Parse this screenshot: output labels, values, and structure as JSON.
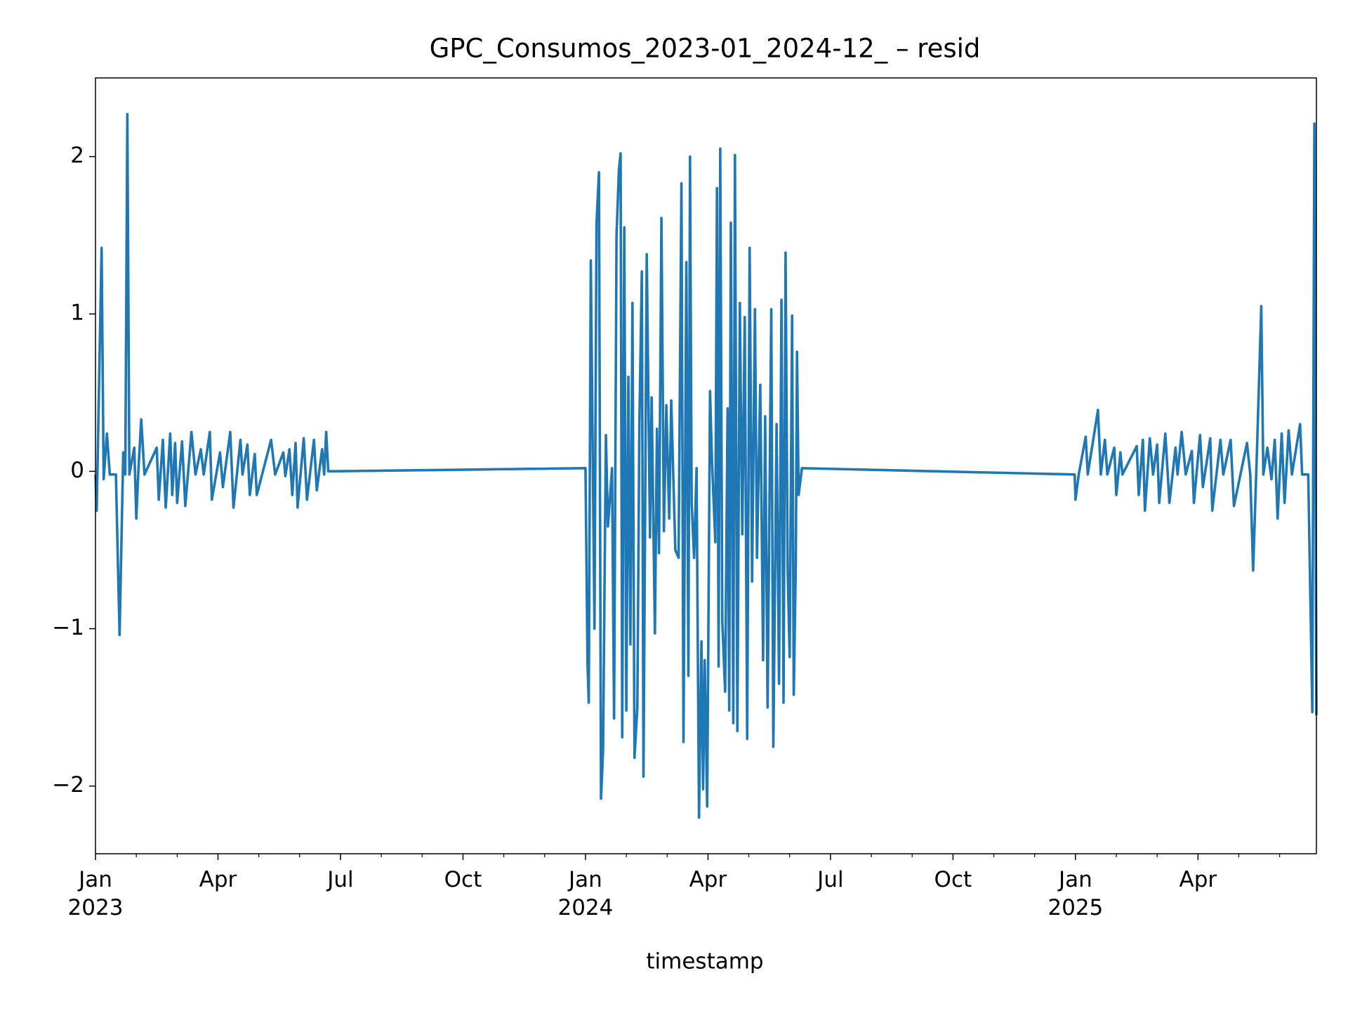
{
  "chart_data": {
    "type": "line",
    "title": "GPC_Consumos_2023-01_2024-12_ – resid",
    "xlabel": "timestamp",
    "color": "#1f77b4",
    "xlim": [
      0,
      29.9
    ],
    "ylim": [
      -2.43,
      2.5
    ],
    "xticks": [
      {
        "value": 0,
        "label": "Jan\n2023"
      },
      {
        "value": 3,
        "label": "Apr"
      },
      {
        "value": 6,
        "label": "Jul"
      },
      {
        "value": 9,
        "label": "Oct"
      },
      {
        "value": 12,
        "label": "Jan\n2024"
      },
      {
        "value": 15,
        "label": "Apr"
      },
      {
        "value": 18,
        "label": "Jul"
      },
      {
        "value": 21,
        "label": "Oct"
      },
      {
        "value": 24,
        "label": "Jan\n2025"
      },
      {
        "value": 27,
        "label": "Apr"
      }
    ],
    "xminorticks": [
      1,
      2,
      4,
      5,
      7,
      8,
      10,
      11,
      13,
      14,
      16,
      17,
      19,
      20,
      22,
      23,
      25,
      26,
      28,
      29
    ],
    "yticks": [
      {
        "value": -2,
        "label": "−2"
      },
      {
        "value": -1,
        "label": "−1"
      },
      0,
      1,
      2
    ],
    "x": [
      0,
      0.03,
      0.15,
      0.2,
      0.28,
      0.35,
      0.5,
      0.59,
      0.68,
      0.73,
      0.78,
      0.83,
      0.95,
      1.0,
      1.05,
      1.12,
      1.2,
      1.5,
      1.55,
      1.65,
      1.72,
      1.83,
      1.88,
      1.95,
      2.0,
      2.12,
      2.2,
      2.35,
      2.45,
      2.58,
      2.65,
      2.8,
      2.85,
      3.05,
      3.12,
      3.3,
      3.38,
      3.55,
      3.6,
      3.72,
      3.78,
      3.9,
      3.95,
      4.3,
      4.4,
      4.6,
      4.65,
      4.75,
      4.82,
      4.9,
      4.95,
      5.1,
      5.18,
      5.35,
      5.42,
      5.55,
      5.6,
      5.65,
      5.7,
      12.0,
      12.05,
      12.08,
      12.13,
      12.22,
      12.27,
      12.33,
      12.38,
      12.43,
      12.5,
      12.55,
      12.65,
      12.7,
      12.76,
      12.82,
      12.86,
      12.9,
      12.95,
      13.0,
      13.05,
      13.1,
      13.15,
      13.2,
      13.27,
      13.32,
      13.38,
      13.42,
      13.5,
      13.58,
      13.62,
      13.7,
      13.75,
      13.8,
      13.86,
      13.92,
      13.98,
      14.05,
      14.1,
      14.2,
      14.28,
      14.35,
      14.4,
      14.47,
      14.52,
      14.56,
      14.6,
      14.66,
      14.72,
      14.78,
      14.84,
      14.88,
      14.92,
      14.98,
      15.05,
      15.1,
      15.18,
      15.22,
      15.26,
      15.3,
      15.35,
      15.42,
      15.48,
      15.52,
      15.56,
      15.62,
      15.66,
      15.72,
      15.78,
      15.84,
      15.9,
      15.96,
      16.02,
      16.08,
      16.15,
      16.2,
      16.28,
      16.35,
      16.4,
      16.46,
      16.55,
      16.6,
      16.68,
      16.74,
      16.8,
      16.85,
      16.9,
      16.95,
      17.0,
      17.06,
      17.1,
      17.15,
      17.18,
      17.22,
      17.3,
      23.98,
      24.0,
      24.08,
      24.25,
      24.3,
      24.55,
      24.62,
      24.72,
      24.78,
      24.95,
      25.0,
      25.1,
      25.15,
      25.5,
      25.55,
      25.65,
      25.7,
      25.82,
      25.9,
      26.0,
      26.05,
      26.2,
      26.3,
      26.45,
      26.5,
      26.6,
      26.7,
      26.85,
      26.9,
      27.05,
      27.12,
      27.3,
      27.35,
      27.55,
      27.62,
      27.8,
      27.88,
      28.2,
      28.28,
      28.35,
      28.45,
      28.55,
      28.6,
      28.7,
      28.8,
      28.88,
      28.95,
      29.05,
      29.12,
      29.22,
      29.3,
      29.5,
      29.55,
      29.7,
      29.8,
      29.85,
      29.9
    ],
    "values": [
      -0.02,
      -0.25,
      1.42,
      -0.05,
      0.24,
      -0.02,
      -0.02,
      -1.04,
      0.12,
      -0.02,
      2.27,
      -0.02,
      0.15,
      -0.3,
      0.0,
      0.33,
      -0.02,
      0.15,
      -0.18,
      0.2,
      -0.23,
      0.24,
      -0.15,
      0.18,
      -0.2,
      0.19,
      -0.22,
      0.25,
      -0.02,
      0.14,
      -0.02,
      0.25,
      -0.18,
      0.12,
      -0.1,
      0.25,
      -0.23,
      0.2,
      -0.02,
      0.17,
      -0.15,
      0.11,
      -0.15,
      0.2,
      -0.02,
      0.12,
      -0.03,
      0.14,
      -0.15,
      0.18,
      -0.23,
      0.21,
      -0.18,
      0.2,
      -0.12,
      0.14,
      -0.02,
      0.25,
      0.0,
      0.02,
      -1.22,
      -1.47,
      1.34,
      -1.0,
      1.58,
      1.9,
      -2.08,
      -1.78,
      0.23,
      -0.35,
      0.02,
      -1.57,
      1.5,
      1.92,
      2.02,
      -1.69,
      1.55,
      -1.52,
      0.6,
      -1.1,
      1.07,
      -1.82,
      -1.5,
      0.3,
      1.27,
      -1.94,
      1.38,
      -0.42,
      0.47,
      -1.03,
      0.27,
      -0.52,
      1.61,
      -0.38,
      0.42,
      -0.3,
      0.45,
      -0.5,
      -0.55,
      1.83,
      -1.72,
      1.33,
      -1.3,
      2.0,
      -0.2,
      -0.55,
      0.02,
      -2.2,
      -1.08,
      -2.02,
      -1.2,
      -2.13,
      0.51,
      0.05,
      -0.45,
      1.8,
      -1.24,
      2.05,
      -0.95,
      -1.4,
      0.4,
      -1.52,
      1.58,
      -1.6,
      2.01,
      -1.65,
      1.07,
      -0.4,
      0.98,
      -1.7,
      1.42,
      -0.7,
      1.03,
      -0.55,
      0.55,
      -1.2,
      0.35,
      -1.5,
      1.03,
      -1.75,
      0.3,
      -1.35,
      1.09,
      -1.47,
      1.39,
      -0.6,
      -1.18,
      0.99,
      -1.42,
      -0.6,
      0.76,
      -0.15,
      0.02,
      -0.02,
      -0.18,
      -0.02,
      0.22,
      -0.02,
      0.39,
      -0.02,
      0.2,
      -0.02,
      0.15,
      -0.15,
      0.12,
      -0.02,
      0.16,
      -0.15,
      0.2,
      -0.25,
      0.21,
      -0.02,
      0.17,
      -0.2,
      0.24,
      -0.2,
      0.15,
      -0.02,
      0.25,
      -0.02,
      0.13,
      -0.2,
      0.23,
      -0.1,
      0.21,
      -0.25,
      0.2,
      -0.02,
      0.2,
      -0.22,
      0.18,
      -0.02,
      -0.63,
      0.18,
      1.05,
      -0.02,
      0.15,
      -0.05,
      0.2,
      -0.3,
      0.24,
      -0.2,
      0.26,
      -0.02,
      0.3,
      -0.02,
      -0.02,
      -1.53,
      2.21,
      -1.55
    ]
  }
}
